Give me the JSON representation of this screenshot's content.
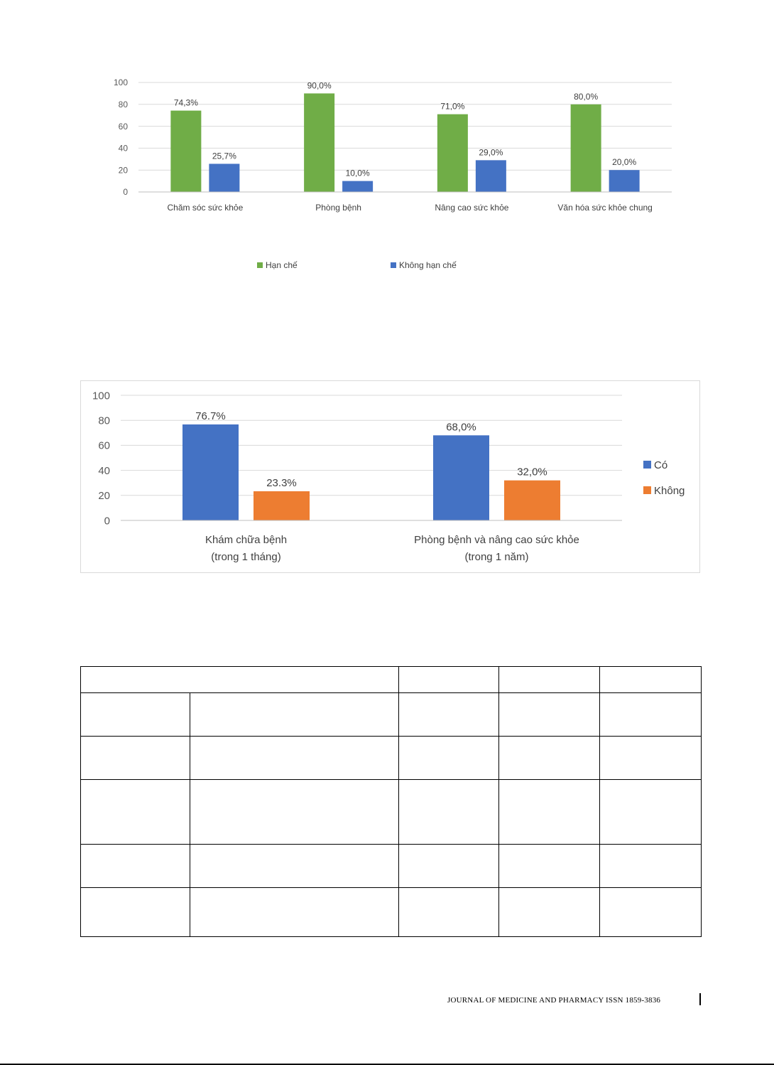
{
  "charts": {
    "chart_data": [
      {
        "type": "bar",
        "categories": [
          "Chăm sóc sức khỏe",
          "Phòng bệnh",
          "Nâng cao sức khỏe",
          "Văn hóa sức khỏe chung"
        ],
        "series": [
          {
            "name": "Hạn chế",
            "values": [
              74.3,
              90.0,
              71.0,
              80.0
            ],
            "labels": [
              "74,3%",
              "90,0%",
              "71,0%",
              "80,0%"
            ],
            "color": "#70ad47"
          },
          {
            "name": "Không hạn chế",
            "values": [
              25.7,
              10.0,
              29.0,
              20.0
            ],
            "labels": [
              "25,7%",
              "10,0%",
              "29,0%",
              "20,0%"
            ],
            "color": "#4472c4"
          }
        ],
        "yticks": [
          0,
          20,
          40,
          60,
          80,
          100
        ],
        "ylim": [
          0,
          100
        ],
        "grid": true,
        "legend": "bottom"
      },
      {
        "type": "bar",
        "categories": [
          [
            "Khám chữa bệnh",
            "(trong 1 tháng)"
          ],
          [
            "Phòng bệnh  và nâng cao sức khỏe",
            "(trong 1 năm)"
          ]
        ],
        "series": [
          {
            "name": "Có",
            "values": [
              76.7,
              68.0
            ],
            "labels": [
              "76.7%",
              "68,0%"
            ],
            "color": "#4472c4"
          },
          {
            "name": "Không",
            "values": [
              23.3,
              32.0
            ],
            "labels": [
              "23.3%",
              "32,0%"
            ],
            "color": "#ed7d31"
          }
        ],
        "yticks": [
          0,
          20,
          40,
          60,
          80,
          100
        ],
        "ylim": [
          0,
          100
        ],
        "grid": true,
        "legend": "right"
      }
    ]
  },
  "table": {
    "rows": [
      [
        "",
        "",
        "",
        ""
      ],
      [
        "",
        "",
        "",
        "",
        ""
      ],
      [
        "",
        "",
        "",
        "",
        ""
      ],
      [
        "",
        "",
        "",
        "",
        ""
      ],
      [
        "",
        "",
        "",
        "",
        ""
      ],
      [
        "",
        "",
        "",
        "",
        ""
      ]
    ]
  },
  "footer": {
    "journal": "JOURNAL OF MEDICINE AND PHARMACY ISSN 1859-3836"
  }
}
